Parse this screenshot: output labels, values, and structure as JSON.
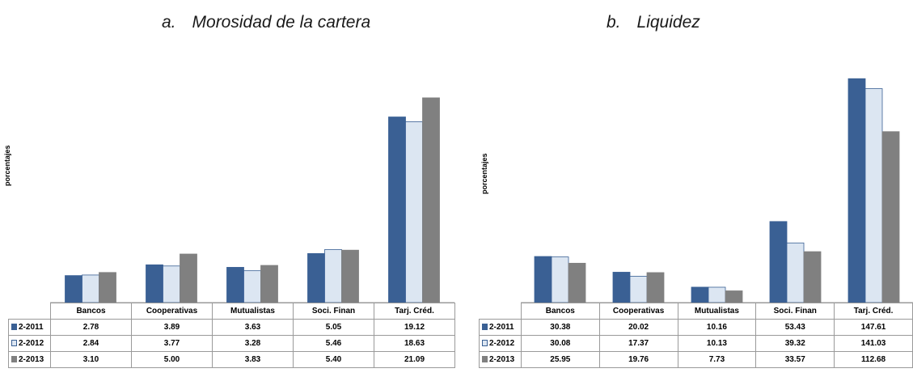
{
  "chart_data": [
    {
      "type": "bar",
      "title": "Morosidad de la cartera",
      "title_letter": "a.",
      "ylabel": "porcentajes",
      "ylim": [
        0,
        25
      ],
      "grid": false,
      "legend": "data-table",
      "categories": [
        "Bancos",
        "Cooperativas",
        "Mutualistas",
        "Soci. Finan",
        "Tarj. Créd."
      ],
      "series": [
        {
          "name": "2-2011",
          "color": "#3A6094",
          "values": [
            2.78,
            3.89,
            3.63,
            5.05,
            19.12
          ]
        },
        {
          "name": "2-2012",
          "color": "#DCE6F2",
          "values": [
            2.84,
            3.77,
            3.28,
            5.46,
            18.63
          ]
        },
        {
          "name": "2-2013",
          "color": "#808080",
          "values": [
            3.1,
            5.0,
            3.83,
            5.4,
            21.09
          ]
        }
      ],
      "table": [
        [
          "2.78",
          "3.89",
          "3.63",
          "5.05",
          "19.12"
        ],
        [
          "2.84",
          "3.77",
          "3.28",
          "5.46",
          "18.63"
        ],
        [
          "3.10",
          "5.00",
          "3.83",
          "5.40",
          "21.09"
        ]
      ]
    },
    {
      "type": "bar",
      "title": "Liquidez",
      "title_letter": "b.",
      "ylabel": "porcentajes",
      "ylim": [
        0,
        160
      ],
      "grid": false,
      "legend": "data-table",
      "categories": [
        "Bancos",
        "Cooperativas",
        "Mutualistas",
        "Soci. Finan",
        "Tarj. Créd."
      ],
      "series": [
        {
          "name": "2-2011",
          "color": "#3A6094",
          "values": [
            30.38,
            20.02,
            10.16,
            53.43,
            147.61
          ]
        },
        {
          "name": "2-2012",
          "color": "#DCE6F2",
          "values": [
            30.08,
            17.37,
            10.13,
            39.32,
            141.03
          ]
        },
        {
          "name": "2-2013",
          "color": "#808080",
          "values": [
            25.95,
            19.76,
            7.73,
            33.57,
            112.68
          ]
        }
      ],
      "table": [
        [
          "30.38",
          "20.02",
          "10.16",
          "53.43",
          "147.61"
        ],
        [
          "30.08",
          "17.37",
          "10.13",
          "39.32",
          "141.03"
        ],
        [
          "25.95",
          "19.76",
          "7.73",
          "33.57",
          "112.68"
        ]
      ]
    }
  ]
}
